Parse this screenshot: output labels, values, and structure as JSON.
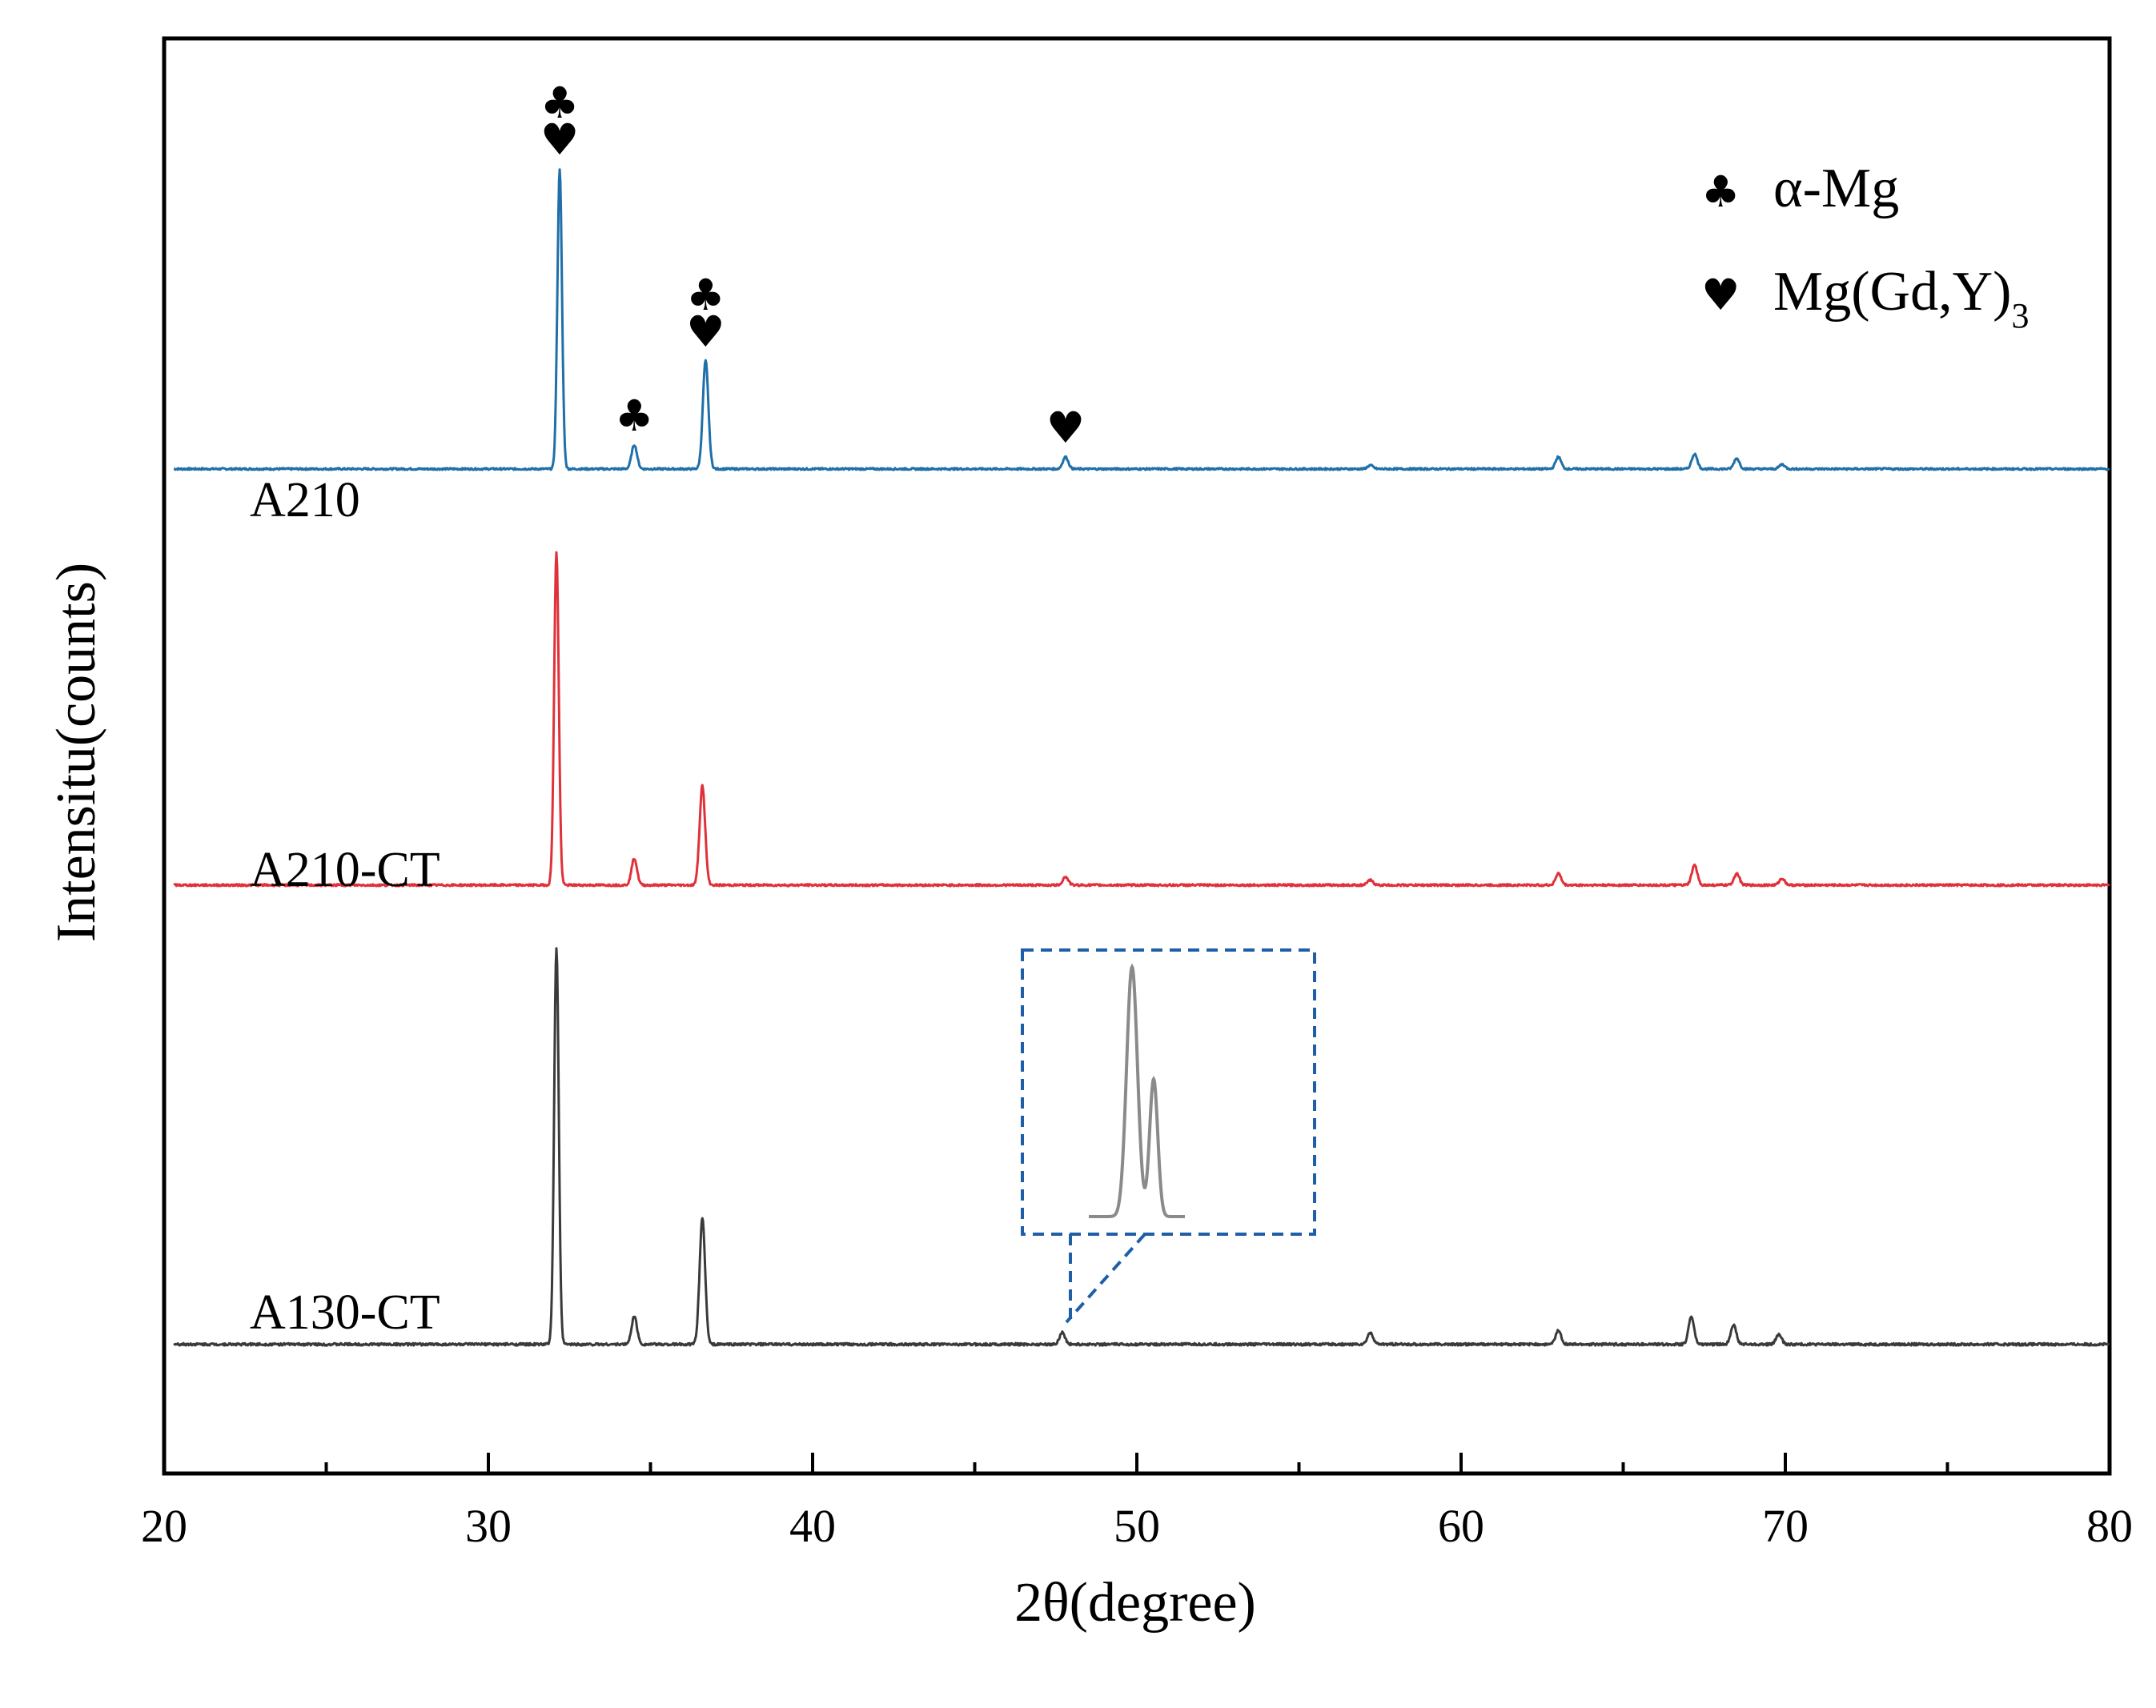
{
  "chart_data": {
    "type": "line",
    "xlabel": "2θ(degree)",
    "ylabel": "Intensitu(counts)",
    "xlim": [
      20,
      80
    ],
    "xticks": [
      20,
      30,
      40,
      50,
      60,
      70,
      80
    ],
    "xtick_labels": [
      "20",
      "30",
      "40",
      "50",
      "60",
      "70",
      "80"
    ],
    "y_ticks_shown": false,
    "grid": false,
    "legend": {
      "placement": "top-right",
      "entries": [
        {
          "symbol": "♣",
          "label": "α-Mg"
        },
        {
          "symbol": "♥",
          "label": "Mg(Gd,Y)",
          "subscript": "3"
        }
      ]
    },
    "series": [
      {
        "name": "A210",
        "color": "#1f6fa8",
        "baseline_fraction": 0.7,
        "peaks": [
          {
            "x": 32.2,
            "rel_height": 1.0
          },
          {
            "x": 34.5,
            "rel_height": 0.08
          },
          {
            "x": 36.7,
            "rel_height": 0.36
          },
          {
            "x": 47.8,
            "rel_height": 0.04
          },
          {
            "x": 57.2,
            "rel_height": 0.012
          },
          {
            "x": 63.0,
            "rel_height": 0.04
          },
          {
            "x": 67.2,
            "rel_height": 0.05
          },
          {
            "x": 68.5,
            "rel_height": 0.035
          },
          {
            "x": 69.9,
            "rel_height": 0.015
          }
        ],
        "annotations": [
          {
            "x": 32.2,
            "symbols": [
              "♣",
              "♥"
            ]
          },
          {
            "x": 34.5,
            "symbols": [
              "♣"
            ]
          },
          {
            "x": 36.7,
            "symbols": [
              "♣",
              "♥"
            ]
          },
          {
            "x": 47.8,
            "symbols": [
              "♥"
            ]
          }
        ]
      },
      {
        "name": "A210-CT",
        "color": "#e0313a",
        "baseline_fraction": 0.41,
        "peaks": [
          {
            "x": 32.1,
            "rel_height": 1.0
          },
          {
            "x": 34.5,
            "rel_height": 0.08
          },
          {
            "x": 36.6,
            "rel_height": 0.3
          },
          {
            "x": 47.8,
            "rel_height": 0.025
          },
          {
            "x": 57.2,
            "rel_height": 0.015
          },
          {
            "x": 63.0,
            "rel_height": 0.035
          },
          {
            "x": 67.2,
            "rel_height": 0.06
          },
          {
            "x": 68.5,
            "rel_height": 0.035
          },
          {
            "x": 69.9,
            "rel_height": 0.02
          }
        ]
      },
      {
        "name": "A130-CT",
        "color": "#3a3a3a",
        "baseline_fraction": 0.09,
        "peaks": [
          {
            "x": 32.1,
            "rel_height": 1.0
          },
          {
            "x": 34.5,
            "rel_height": 0.07
          },
          {
            "x": 36.6,
            "rel_height": 0.32
          },
          {
            "x": 47.7,
            "rel_height": 0.03
          },
          {
            "x": 57.2,
            "rel_height": 0.03
          },
          {
            "x": 63.0,
            "rel_height": 0.035
          },
          {
            "x": 67.1,
            "rel_height": 0.07
          },
          {
            "x": 68.4,
            "rel_height": 0.05
          },
          {
            "x": 69.8,
            "rel_height": 0.025
          }
        ],
        "inset": {
          "zoom_of_x": 47.7,
          "description_none": true
        }
      }
    ]
  }
}
